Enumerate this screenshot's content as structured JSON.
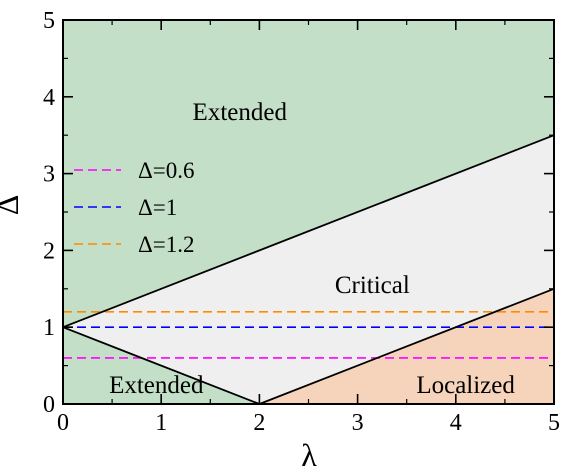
{
  "chart_data": {
    "type": "area",
    "title": "",
    "xlabel": "λ",
    "ylabel": "Δ",
    "xlim": [
      0,
      5
    ],
    "ylim": [
      0,
      5
    ],
    "x_ticks": [
      "0",
      "1",
      "2",
      "3",
      "4",
      "5"
    ],
    "y_ticks": [
      "0",
      "1",
      "2",
      "3",
      "4",
      "5"
    ],
    "grid": false,
    "legend_position": "left",
    "regions": [
      {
        "name": "extended-upper",
        "label": "Extended",
        "color": "#c3dfc7",
        "polygon": [
          [
            0,
            1
          ],
          [
            0,
            5
          ],
          [
            5,
            5
          ],
          [
            5,
            3.5
          ]
        ],
        "label_at": [
          1.8,
          3.8
        ]
      },
      {
        "name": "extended-lower",
        "label": "Extended",
        "color": "#c3dfc7",
        "polygon": [
          [
            0,
            0
          ],
          [
            0,
            1
          ],
          [
            2,
            0
          ]
        ],
        "label_at": [
          0.95,
          0.25
        ]
      },
      {
        "name": "critical",
        "label": "Critical",
        "color": "#efefef",
        "polygon": [
          [
            0,
            1
          ],
          [
            5,
            3.5
          ],
          [
            5,
            1.5
          ],
          [
            2,
            0
          ]
        ],
        "label_at": [
          3.15,
          1.55
        ]
      },
      {
        "name": "localized",
        "label": "Localized",
        "color": "#f6d4bb",
        "polygon": [
          [
            2,
            0
          ],
          [
            5,
            1.5
          ],
          [
            5,
            0
          ]
        ],
        "label_at": [
          4.1,
          0.25
        ]
      }
    ],
    "boundaries": [
      {
        "x": [
          0,
          5
        ],
        "y": [
          1,
          3.5
        ],
        "color": "#000000"
      },
      {
        "x": [
          0,
          2
        ],
        "y": [
          1,
          0
        ],
        "color": "#000000"
      },
      {
        "x": [
          2,
          5
        ],
        "y": [
          0,
          1.5
        ],
        "color": "#000000"
      }
    ],
    "series": [
      {
        "name": "Δ=0.6",
        "y": 0.6,
        "x": [
          0,
          5
        ],
        "color": "#ff00ff",
        "style": "dashed"
      },
      {
        "name": "Δ=1",
        "y": 1.0,
        "x": [
          0,
          5
        ],
        "color": "#0000ff",
        "style": "dashed"
      },
      {
        "name": "Δ=1.2",
        "y": 1.2,
        "x": [
          0,
          5
        ],
        "color": "#ff8c00",
        "style": "dashed"
      }
    ]
  }
}
